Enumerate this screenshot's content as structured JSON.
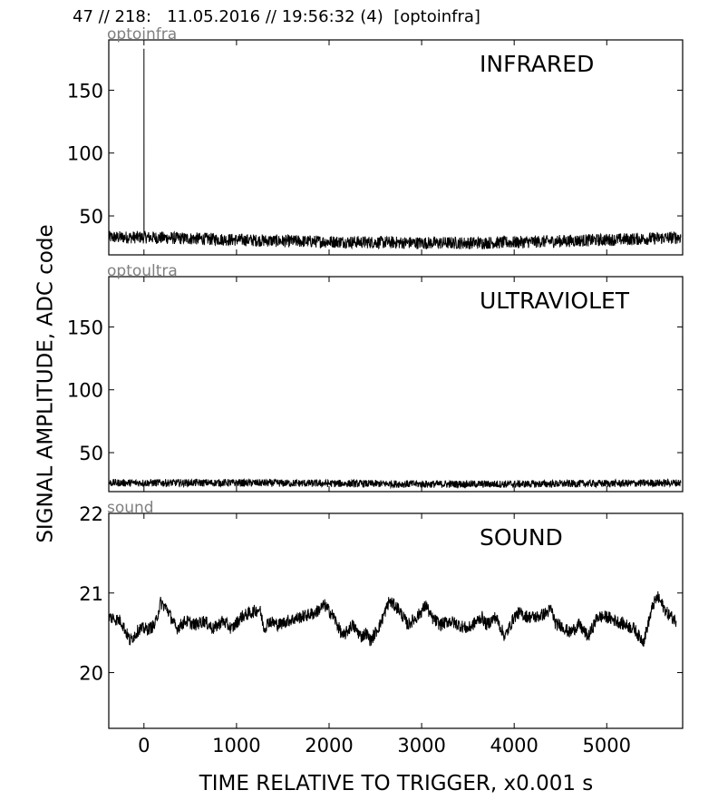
{
  "header": {
    "title": "47 // 218:   11.05.2016 // 19:56:32 (4)  [optoinfra]"
  },
  "figure": {
    "ylabel": "SIGNAL AMPLITUDE,  ADC code",
    "xlabel": "TIME RELATIVE TO TRIGGER,   x0.001 s"
  },
  "chart_data": [
    {
      "type": "line",
      "channel": "optoinfra",
      "panel_label": "INFRARED",
      "xlim": [
        -380,
        5820
      ],
      "ylim": [
        19,
        190
      ],
      "xticks": [
        0,
        1000,
        2000,
        3000,
        4000,
        5000
      ],
      "yticks": [
        50,
        100,
        150
      ],
      "show_xtick_labels": false,
      "series": [
        {
          "x": [
            -380,
            0,
            0,
            1,
            500,
            1000,
            1500,
            2000,
            2500,
            3000,
            3500,
            4000,
            4500,
            5000,
            5500,
            5800
          ],
          "y": [
            33,
            33,
            183,
            33,
            32,
            31,
            30,
            29.5,
            29,
            28.5,
            28.5,
            29,
            30,
            31,
            32,
            33
          ],
          "noise_amplitude": 5
        }
      ]
    },
    {
      "type": "line",
      "channel": "optoultra",
      "panel_label": "ULTRAVIOLET",
      "xlim": [
        -380,
        5820
      ],
      "ylim": [
        19,
        190
      ],
      "xticks": [
        0,
        1000,
        2000,
        3000,
        4000,
        5000
      ],
      "yticks": [
        50,
        100,
        150
      ],
      "show_xtick_labels": false,
      "series": [
        {
          "x": [
            -380,
            1000,
            2000,
            3000,
            4000,
            5000,
            5800
          ],
          "y": [
            26,
            26,
            25.5,
            25,
            25,
            25.5,
            26
          ],
          "noise_amplitude": 3
        }
      ]
    },
    {
      "type": "line",
      "channel": "sound",
      "panel_label": "SOUND",
      "xlim": [
        -380,
        5820
      ],
      "ylim": [
        19.3,
        22
      ],
      "xticks": [
        0,
        1000,
        2000,
        3000,
        4000,
        5000
      ],
      "yticks": [
        20,
        21,
        22
      ],
      "show_xtick_labels": true,
      "series": [
        {
          "x": [
            -380,
            -250,
            -150,
            -50,
            50,
            120,
            180,
            250,
            350,
            450,
            550,
            650,
            750,
            850,
            950,
            1050,
            1150,
            1250,
            1300,
            1350,
            1450,
            1550,
            1700,
            1850,
            1950,
            2050,
            2150,
            2250,
            2350,
            2400,
            2450,
            2550,
            2650,
            2750,
            2850,
            2950,
            3050,
            3100,
            3200,
            3300,
            3400,
            3500,
            3600,
            3650,
            3700,
            3800,
            3900,
            4000,
            4050,
            4150,
            4250,
            4350,
            4400,
            4450,
            4500,
            4600,
            4700,
            4800,
            4900,
            5000,
            5100,
            5200,
            5300,
            5350,
            5400,
            5500,
            5550,
            5650,
            5750
          ],
          "y": [
            20.7,
            20.65,
            20.4,
            20.55,
            20.55,
            20.6,
            20.88,
            20.8,
            20.55,
            20.65,
            20.6,
            20.65,
            20.55,
            20.65,
            20.55,
            20.7,
            20.75,
            20.8,
            20.55,
            20.65,
            20.6,
            20.65,
            20.7,
            20.75,
            20.85,
            20.7,
            20.45,
            20.6,
            20.45,
            20.5,
            20.4,
            20.6,
            20.9,
            20.8,
            20.6,
            20.7,
            20.85,
            20.7,
            20.6,
            20.65,
            20.6,
            20.55,
            20.65,
            20.7,
            20.6,
            20.7,
            20.45,
            20.7,
            20.75,
            20.7,
            20.7,
            20.75,
            20.8,
            20.6,
            20.6,
            20.5,
            20.6,
            20.45,
            20.7,
            20.7,
            20.65,
            20.6,
            20.55,
            20.45,
            20.4,
            20.85,
            20.95,
            20.75,
            20.65
          ],
          "noise_amplitude": 0.08
        }
      ]
    }
  ]
}
